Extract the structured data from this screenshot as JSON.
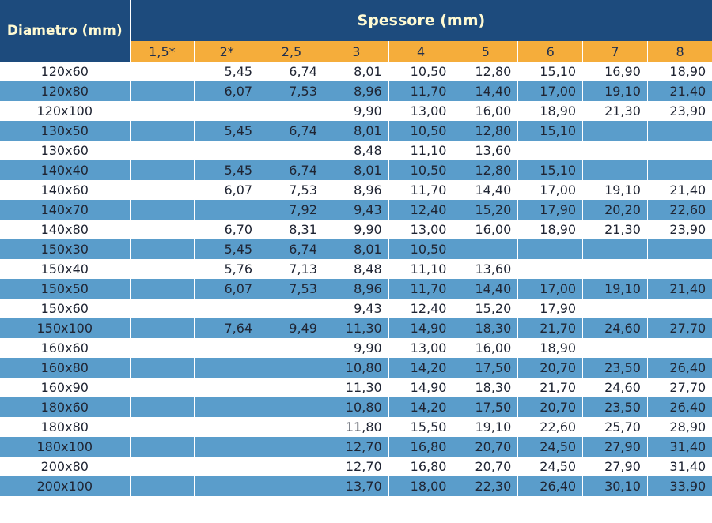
{
  "header": {
    "diameter_label": "Diametro (mm)",
    "thickness_label": "Spessore (mm)",
    "thickness_values": [
      "1,5*",
      "2*",
      "2,5",
      "3",
      "4",
      "5",
      "6",
      "7",
      "8"
    ]
  },
  "colors": {
    "header_bg": "#1d4b7d",
    "subheader_bg": "#f5ad3b",
    "alt_row_bg": "#5a9dcb",
    "plain_row_bg": "#ffffff"
  },
  "rows": [
    {
      "label": "120x60",
      "cells": [
        "",
        "5,45",
        "6,74",
        "8,01",
        "10,50",
        "12,80",
        "15,10",
        "16,90",
        "18,90"
      ]
    },
    {
      "label": "120x80",
      "cells": [
        "",
        "6,07",
        "7,53",
        "8,96",
        "11,70",
        "14,40",
        "17,00",
        "19,10",
        "21,40"
      ]
    },
    {
      "label": "120x100",
      "cells": [
        "",
        "",
        "",
        "9,90",
        "13,00",
        "16,00",
        "18,90",
        "21,30",
        "23,90"
      ]
    },
    {
      "label": "130x50",
      "cells": [
        "",
        "5,45",
        "6,74",
        "8,01",
        "10,50",
        "12,80",
        "15,10",
        "",
        ""
      ]
    },
    {
      "label": "130x60",
      "cells": [
        "",
        "",
        "",
        "8,48",
        "11,10",
        "13,60",
        "",
        "",
        ""
      ]
    },
    {
      "label": "140x40",
      "cells": [
        "",
        "5,45",
        "6,74",
        "8,01",
        "10,50",
        "12,80",
        "15,10",
        "",
        ""
      ]
    },
    {
      "label": "140x60",
      "cells": [
        "",
        "6,07",
        "7,53",
        "8,96",
        "11,70",
        "14,40",
        "17,00",
        "19,10",
        "21,40"
      ]
    },
    {
      "label": "140x70",
      "cells": [
        "",
        "",
        "7,92",
        "9,43",
        "12,40",
        "15,20",
        "17,90",
        "20,20",
        "22,60"
      ]
    },
    {
      "label": "140x80",
      "cells": [
        "",
        "6,70",
        "8,31",
        "9,90",
        "13,00",
        "16,00",
        "18,90",
        "21,30",
        "23,90"
      ]
    },
    {
      "label": "150x30",
      "cells": [
        "",
        "5,45",
        "6,74",
        "8,01",
        "10,50",
        "",
        "",
        "",
        ""
      ]
    },
    {
      "label": "150x40",
      "cells": [
        "",
        "5,76",
        "7,13",
        "8,48",
        "11,10",
        "13,60",
        "",
        "",
        ""
      ]
    },
    {
      "label": "150x50",
      "cells": [
        "",
        "6,07",
        "7,53",
        "8,96",
        "11,70",
        "14,40",
        "17,00",
        "19,10",
        "21,40"
      ]
    },
    {
      "label": "150x60",
      "cells": [
        "",
        "",
        "",
        "9,43",
        "12,40",
        "15,20",
        "17,90",
        "",
        ""
      ]
    },
    {
      "label": "150x100",
      "cells": [
        "",
        "7,64",
        "9,49",
        "11,30",
        "14,90",
        "18,30",
        "21,70",
        "24,60",
        "27,70"
      ]
    },
    {
      "label": "160x60",
      "cells": [
        "",
        "",
        "",
        "9,90",
        "13,00",
        "16,00",
        "18,90",
        "",
        ""
      ]
    },
    {
      "label": "160x80",
      "cells": [
        "",
        "",
        "",
        "10,80",
        "14,20",
        "17,50",
        "20,70",
        "23,50",
        "26,40"
      ]
    },
    {
      "label": "160x90",
      "cells": [
        "",
        "",
        "",
        "11,30",
        "14,90",
        "18,30",
        "21,70",
        "24,60",
        "27,70"
      ]
    },
    {
      "label": "180x60",
      "cells": [
        "",
        "",
        "",
        "10,80",
        "14,20",
        "17,50",
        "20,70",
        "23,50",
        "26,40"
      ]
    },
    {
      "label": "180x80",
      "cells": [
        "",
        "",
        "",
        "11,80",
        "15,50",
        "19,10",
        "22,60",
        "25,70",
        "28,90"
      ]
    },
    {
      "label": "180x100",
      "cells": [
        "",
        "",
        "",
        "12,70",
        "16,80",
        "20,70",
        "24,50",
        "27,90",
        "31,40"
      ]
    },
    {
      "label": "200x80",
      "cells": [
        "",
        "",
        "",
        "12,70",
        "16,80",
        "20,70",
        "24,50",
        "27,90",
        "31,40"
      ]
    },
    {
      "label": "200x100",
      "cells": [
        "",
        "",
        "",
        "13,70",
        "18,00",
        "22,30",
        "26,40",
        "30,10",
        "33,90"
      ]
    }
  ]
}
